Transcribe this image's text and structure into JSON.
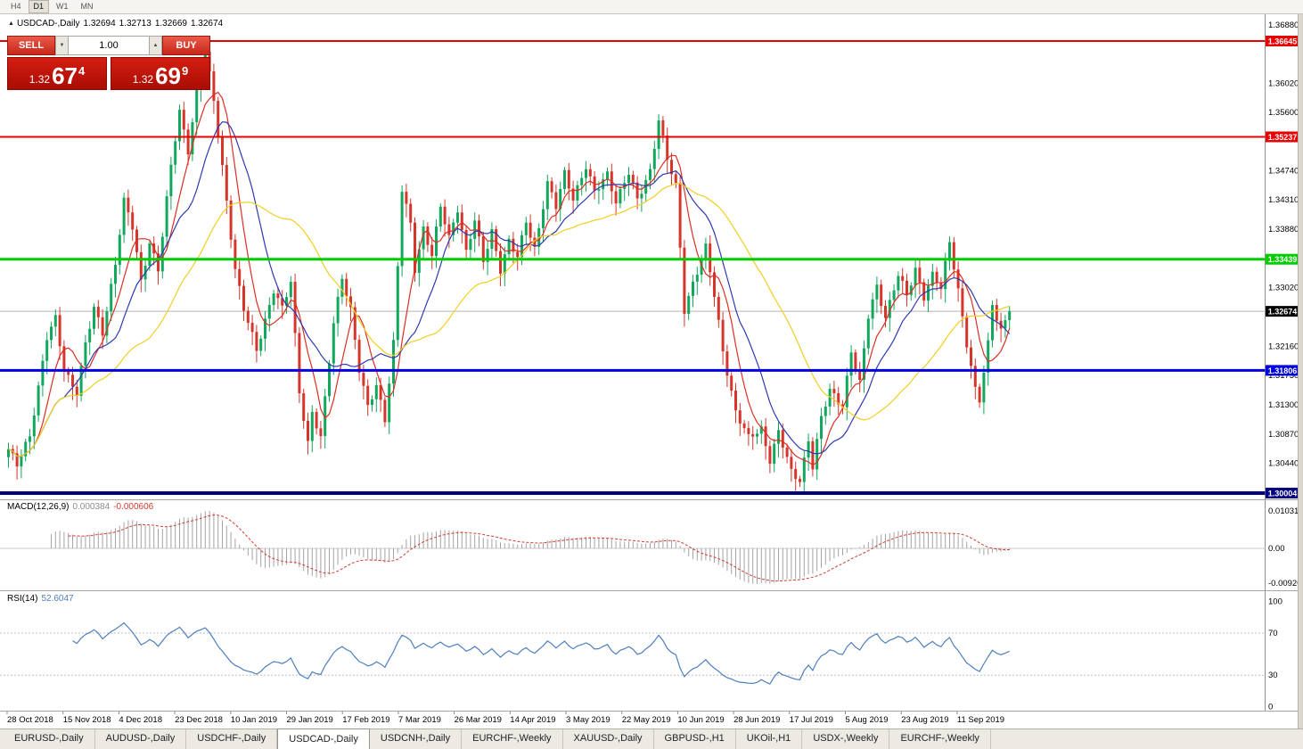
{
  "toolbar": {
    "periods": [
      {
        "label": "H4",
        "active": false
      },
      {
        "label": "D1",
        "active": true
      },
      {
        "label": "W1",
        "active": false
      },
      {
        "label": "MN",
        "active": false
      }
    ]
  },
  "chart_header": {
    "collapse_icon": "▲",
    "symbol": "USDCAD-,Daily",
    "open": "1.32694",
    "high": "1.32713",
    "low": "1.32669",
    "close": "1.32674"
  },
  "trade_panel": {
    "sell_label": "SELL",
    "buy_label": "BUY",
    "volume": "1.00",
    "spin_down_icon": "▼",
    "spin_up_icon": "▲",
    "bid": {
      "prefix": "1.32",
      "big": "67",
      "sup": "4"
    },
    "ask": {
      "prefix": "1.32",
      "big": "69",
      "sup": "9"
    }
  },
  "price_axis": {
    "ticks": [
      1.3688,
      1.3602,
      1.356,
      1.3474,
      1.3431,
      1.3388,
      1.3302,
      1.3216,
      1.3173,
      1.313,
      1.3087,
      1.3044
    ]
  },
  "macd": {
    "name": "MACD(12,26,9)",
    "value": "0.000384",
    "signal_value": "-0.000606",
    "axis_labels": [
      "0.010311",
      "0.00",
      "-0.009203"
    ],
    "histogram_color": "#a3a3a3",
    "signal_color": "#d23b2f"
  },
  "rsi": {
    "name": "RSI(14)",
    "value": "52.6047",
    "axis_levels": [
      100,
      70,
      30,
      0
    ],
    "line_color": "#4d7fbe",
    "period": 14
  },
  "dates": [
    "28 Oct 2018",
    "15 Nov 2018",
    "4 Dec 2018",
    "23 Dec 2018",
    "10 Jan 2019",
    "29 Jan 2019",
    "17 Feb 2019",
    "7 Mar 2019",
    "26 Mar 2019",
    "14 Apr 2019",
    "3 May 2019",
    "22 May 2019",
    "10 Jun 2019",
    "28 Jun 2019",
    "17 Jul 2019",
    "5 Aug 2019",
    "23 Aug 2019",
    "11 Sep 2019"
  ],
  "tabs": [
    {
      "label": "EURUSD-,Daily",
      "active": false
    },
    {
      "label": "AUDUSD-,Daily",
      "active": false
    },
    {
      "label": "USDCHF-,Daily",
      "active": false
    },
    {
      "label": "USDCAD-,Daily",
      "active": true
    },
    {
      "label": "USDCNH-,Daily",
      "active": false
    },
    {
      "label": "EURCHF-,Weekly",
      "active": false
    },
    {
      "label": "XAUUSD-,Daily",
      "active": false
    },
    {
      "label": "GBPUSD-,H1",
      "active": false
    },
    {
      "label": "UKOil-,H1",
      "active": false
    },
    {
      "label": "USDX-,Weekly",
      "active": false
    },
    {
      "label": "EURCHF-,Weekly",
      "active": false
    }
  ],
  "chart_data": {
    "type": "candlestick",
    "symbol": "USDCAD",
    "timeframe": "Daily",
    "bars": 235,
    "x_range": [
      "28 Oct 2018",
      "20 Sep 2019"
    ],
    "y_range": [
      1.299,
      1.37
    ],
    "grid": false,
    "up_color": "#11a75c",
    "down_color": "#d6352b",
    "current_price": {
      "value": 1.32674,
      "label": "1.32674",
      "line_color": "#b5b5b5",
      "tag_bg": "#000000"
    },
    "levels": [
      {
        "price": 1.36645,
        "label": "1.36645",
        "color": "#e60000",
        "width": 2,
        "kind": "resistance"
      },
      {
        "price": 1.35237,
        "label": "1.35237",
        "color": "#e60000",
        "width": 2,
        "kind": "resistance"
      },
      {
        "price": 1.33439,
        "label": "1.33439",
        "color": "#00cc00",
        "width": 3,
        "kind": "pivot"
      },
      {
        "price": 1.31806,
        "label": "1.31806",
        "color": "#0000e0",
        "width": 3,
        "kind": "support"
      },
      {
        "price": 1.30004,
        "label": "1.30004",
        "color": "#000080",
        "width": 4,
        "kind": "support"
      }
    ],
    "moving_averages": [
      {
        "period": 7,
        "color": "#dd2e22"
      },
      {
        "period": 14,
        "color": "#2e3ab0"
      },
      {
        "period": 34,
        "color": "#f2cf1f"
      }
    ],
    "close_anchors": [
      [
        0,
        1.3065
      ],
      [
        2,
        1.304
      ],
      [
        5,
        1.3085
      ],
      [
        9,
        1.323
      ],
      [
        11,
        1.3255
      ],
      [
        13,
        1.318
      ],
      [
        16,
        1.315
      ],
      [
        18,
        1.322
      ],
      [
        20,
        1.327
      ],
      [
        22,
        1.3235
      ],
      [
        25,
        1.334
      ],
      [
        27,
        1.343
      ],
      [
        29,
        1.339
      ],
      [
        31,
        1.331
      ],
      [
        33,
        1.337
      ],
      [
        35,
        1.333
      ],
      [
        38,
        1.348
      ],
      [
        40,
        1.356
      ],
      [
        42,
        1.3505
      ],
      [
        44,
        1.359
      ],
      [
        46,
        1.365
      ],
      [
        48,
        1.3575
      ],
      [
        50,
        1.348
      ],
      [
        53,
        1.333
      ],
      [
        55,
        1.327
      ],
      [
        58,
        1.321
      ],
      [
        60,
        1.3255
      ],
      [
        62,
        1.33
      ],
      [
        64,
        1.327
      ],
      [
        66,
        1.331
      ],
      [
        68,
        1.315
      ],
      [
        70,
        1.3075
      ],
      [
        71,
        1.312
      ],
      [
        73,
        1.308
      ],
      [
        76,
        1.325
      ],
      [
        78,
        1.332
      ],
      [
        80,
        1.327
      ],
      [
        82,
        1.318
      ],
      [
        84,
        1.3125
      ],
      [
        86,
        1.316
      ],
      [
        88,
        1.311
      ],
      [
        90,
        1.322
      ],
      [
        92,
        1.3445
      ],
      [
        94,
        1.3395
      ],
      [
        95,
        1.333
      ],
      [
        97,
        1.339
      ],
      [
        99,
        1.335
      ],
      [
        101,
        1.342
      ],
      [
        103,
        1.3375
      ],
      [
        105,
        1.342
      ],
      [
        107,
        1.3355
      ],
      [
        109,
        1.34
      ],
      [
        111,
        1.334
      ],
      [
        113,
        1.3385
      ],
      [
        115,
        1.333
      ],
      [
        117,
        1.337
      ],
      [
        119,
        1.3345
      ],
      [
        121,
        1.34
      ],
      [
        123,
        1.336
      ],
      [
        126,
        1.3455
      ],
      [
        128,
        1.342
      ],
      [
        130,
        1.347
      ],
      [
        132,
        1.3435
      ],
      [
        135,
        1.348
      ],
      [
        137,
        1.344
      ],
      [
        140,
        1.347
      ],
      [
        142,
        1.343
      ],
      [
        145,
        1.347
      ],
      [
        147,
        1.343
      ],
      [
        150,
        1.3475
      ],
      [
        152,
        1.355
      ],
      [
        154,
        1.349
      ],
      [
        156,
        1.345
      ],
      [
        158,
        1.327
      ],
      [
        160,
        1.331
      ],
      [
        163,
        1.336
      ],
      [
        165,
        1.329
      ],
      [
        167,
        1.321
      ],
      [
        170,
        1.312
      ],
      [
        173,
        1.308
      ],
      [
        176,
        1.3095
      ],
      [
        178,
        1.305
      ],
      [
        180,
        1.309
      ],
      [
        183,
        1.303
      ],
      [
        185,
        1.302
      ],
      [
        187,
        1.308
      ],
      [
        188,
        1.304
      ],
      [
        190,
        1.311
      ],
      [
        192,
        1.315
      ],
      [
        195,
        1.313
      ],
      [
        197,
        1.321
      ],
      [
        199,
        1.316
      ],
      [
        201,
        1.326
      ],
      [
        203,
        1.3305
      ],
      [
        205,
        1.326
      ],
      [
        208,
        1.332
      ],
      [
        210,
        1.329
      ],
      [
        212,
        1.333
      ],
      [
        214,
        1.329
      ],
      [
        216,
        1.332
      ],
      [
        218,
        1.33
      ],
      [
        220,
        1.337
      ],
      [
        222,
        1.33
      ],
      [
        224,
        1.322
      ],
      [
        226,
        1.315
      ],
      [
        227,
        1.3135
      ],
      [
        229,
        1.322
      ],
      [
        230,
        1.328
      ],
      [
        232,
        1.324
      ],
      [
        234,
        1.32674
      ]
    ]
  }
}
